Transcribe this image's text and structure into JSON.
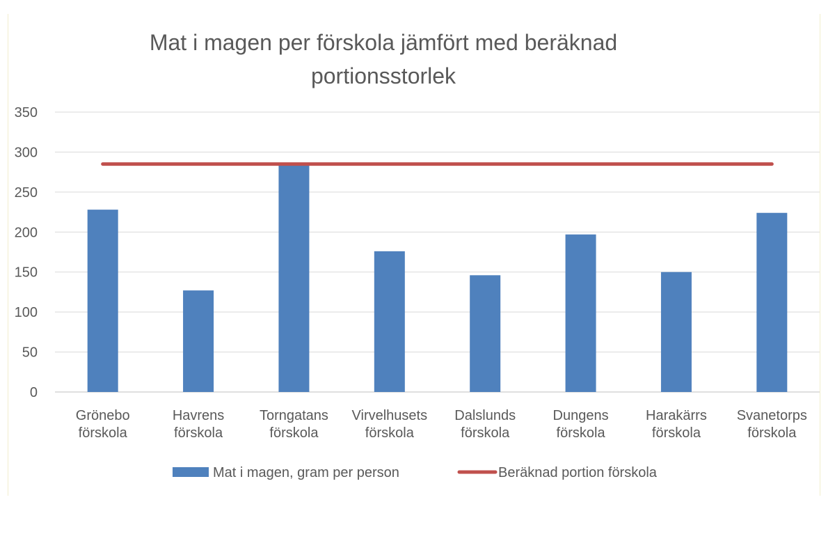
{
  "chart_data": {
    "type": "bar",
    "title_lines": [
      "Mat i magen per förskola jämfört med beräknad",
      "portionsstorlek"
    ],
    "categories": [
      [
        "Grönebo",
        "förskola"
      ],
      [
        "Havrens",
        "förskola"
      ],
      [
        "Torngatans",
        "förskola"
      ],
      [
        "Virvelhusets",
        "förskola"
      ],
      [
        "Dalslunds",
        "förskola"
      ],
      [
        "Dungens",
        "förskola"
      ],
      [
        "Harakärrs",
        "förskola"
      ],
      [
        "Svanetorps",
        "förskola"
      ]
    ],
    "series": [
      {
        "name": "Mat i magen, gram per person",
        "type": "bar",
        "color": "#4f81bd",
        "values": [
          228,
          127,
          285,
          176,
          146,
          197,
          150,
          224
        ]
      },
      {
        "name": "Beräknad portion förskola",
        "type": "line",
        "color": "#c0504d",
        "values": [
          285,
          285,
          285,
          285,
          285,
          285,
          285,
          285
        ]
      }
    ],
    "ylim": [
      0,
      350
    ],
    "yticks": [
      "0",
      "50",
      "100",
      "150",
      "200",
      "250",
      "300",
      "350"
    ],
    "ytick_values": [
      0,
      50,
      100,
      150,
      200,
      250,
      300,
      350
    ],
    "grid": true,
    "legend_position": "bottom"
  }
}
